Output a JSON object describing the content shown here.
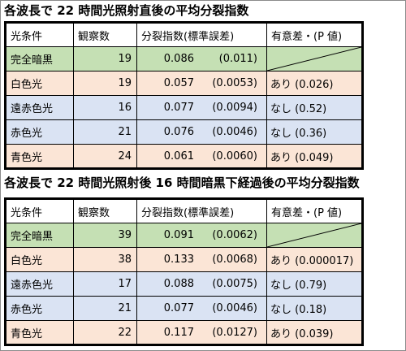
{
  "table1": {
    "title": "各波長で 22 時間光照射直後の平均分裂指数",
    "headers": [
      "光条件",
      "観察数",
      "分裂指数(標準誤差)",
      "有意差・(P 値)"
    ],
    "rows": [
      {
        "condition": "完全暗黒",
        "count": "19",
        "index": "0.086",
        "se": "(0.011)",
        "sig": "",
        "color": "#c5e0b4"
      },
      {
        "condition": "白色光",
        "count": "19",
        "index": "0.057",
        "se": "(0.0053)",
        "sig": "あり (0.026)",
        "color": "#fbe5d6"
      },
      {
        "condition": "遠赤色光",
        "count": "16",
        "index": "0.077",
        "se": "(0.0094)",
        "sig": "なし (0.52)",
        "color": "#dae3f3"
      },
      {
        "condition": "赤色光",
        "count": "21",
        "index": "0.076",
        "se": "(0.0046)",
        "sig": "なし (0.36)",
        "color": "#dae3f3"
      },
      {
        "condition": "青色光",
        "count": "24",
        "index": "0.061",
        "se": "(0.0060)",
        "sig": "あり (0.049)",
        "color": "#fbe5d6"
      }
    ]
  },
  "table2": {
    "title": "各波長で 22 時間光照射後 16 時間暗黒下経過後の平均分裂指数",
    "headers": [
      "光条件",
      "観察数",
      "分裂指数(標準誤差)",
      "有意差・(P 値)"
    ],
    "rows": [
      {
        "condition": "完全暗黒",
        "count": "39",
        "index": "0.091",
        "se": "(0.0062)",
        "sig": "",
        "color": "#c5e0b4"
      },
      {
        "condition": "白色光",
        "count": "38",
        "index": "0.133",
        "se": "(0.0068)",
        "sig": "あり (0.000017)",
        "color": "#fbe5d6"
      },
      {
        "condition": "遠赤色光",
        "count": "17",
        "index": "0.088",
        "se": "(0.0075)",
        "sig": "なし (0.79)",
        "color": "#dae3f3"
      },
      {
        "condition": "赤色光",
        "count": "21",
        "index": "0.077",
        "se": "(0.0046)",
        "sig": "なし (0.18)",
        "color": "#dae3f3"
      },
      {
        "condition": "青色光",
        "count": "22",
        "index": "0.117",
        "se": "(0.0127)",
        "sig": "あり (0.039)",
        "color": "#fbe5d6"
      }
    ]
  }
}
